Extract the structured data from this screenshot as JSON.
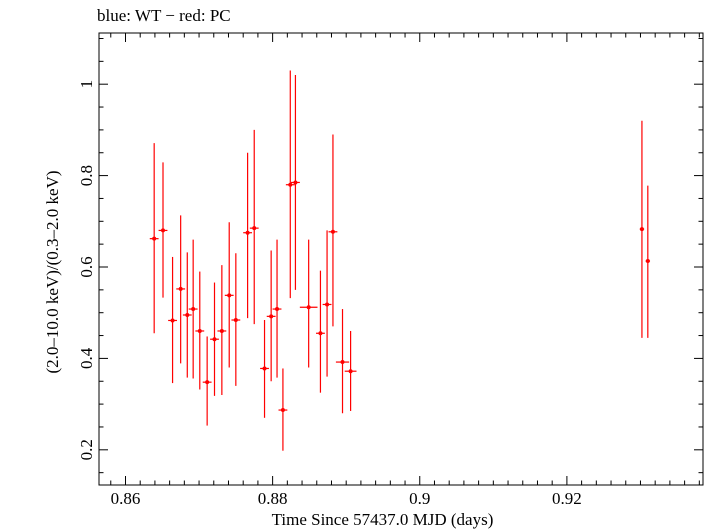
{
  "chart_data": {
    "type": "scatter",
    "title": "blue: WT − red: PC",
    "xlabel": "Time Since 57437.0 MJD (days)",
    "ylabel": "(2.0–10.0 keV)/(0.3–2.0 keV)",
    "xlim": [
      0.8564,
      0.9385
    ],
    "ylim": [
      0.123,
      1.112
    ],
    "x_ticks": [
      0.86,
      0.88,
      0.9,
      0.92
    ],
    "x_tick_labels": [
      "0.86",
      "0.88",
      "0.9",
      "0.92"
    ],
    "y_ticks": [
      0.2,
      0.4,
      0.6,
      0.8,
      1.0
    ],
    "y_tick_labels": [
      "0.2",
      "0.4",
      "0.6",
      "0.8",
      "1"
    ],
    "grid": false,
    "series": [
      {
        "name": "PC",
        "color": "#ff0000",
        "points": [
          {
            "x": 0.8639,
            "xerr": 0.0006,
            "y": 0.662,
            "ylo": 0.455,
            "yhi": 0.871
          },
          {
            "x": 0.8651,
            "xerr": 0.0006,
            "y": 0.68,
            "ylo": 0.533,
            "yhi": 0.829
          },
          {
            "x": 0.8664,
            "xerr": 0.0006,
            "y": 0.483,
            "ylo": 0.346,
            "yhi": 0.622
          },
          {
            "x": 0.8675,
            "xerr": 0.0006,
            "y": 0.552,
            "ylo": 0.389,
            "yhi": 0.713
          },
          {
            "x": 0.8684,
            "xerr": 0.0006,
            "y": 0.495,
            "ylo": 0.358,
            "yhi": 0.632
          },
          {
            "x": 0.8692,
            "xerr": 0.0006,
            "y": 0.508,
            "ylo": 0.356,
            "yhi": 0.66
          },
          {
            "x": 0.8701,
            "xerr": 0.0006,
            "y": 0.46,
            "ylo": 0.332,
            "yhi": 0.59
          },
          {
            "x": 0.8711,
            "xerr": 0.0006,
            "y": 0.348,
            "ylo": 0.253,
            "yhi": 0.448
          },
          {
            "x": 0.8721,
            "xerr": 0.0006,
            "y": 0.442,
            "ylo": 0.318,
            "yhi": 0.566
          },
          {
            "x": 0.8731,
            "xerr": 0.0006,
            "y": 0.46,
            "ylo": 0.32,
            "yhi": 0.604
          },
          {
            "x": 0.8741,
            "xerr": 0.0006,
            "y": 0.538,
            "ylo": 0.38,
            "yhi": 0.698
          },
          {
            "x": 0.875,
            "xerr": 0.0006,
            "y": 0.484,
            "ylo": 0.34,
            "yhi": 0.63
          },
          {
            "x": 0.8766,
            "xerr": 0.0006,
            "y": 0.675,
            "ylo": 0.488,
            "yhi": 0.85
          },
          {
            "x": 0.8775,
            "xerr": 0.0006,
            "y": 0.685,
            "ylo": 0.475,
            "yhi": 0.9
          },
          {
            "x": 0.8789,
            "xerr": 0.0006,
            "y": 0.378,
            "ylo": 0.27,
            "yhi": 0.484
          },
          {
            "x": 0.8798,
            "xerr": 0.0006,
            "y": 0.492,
            "ylo": 0.35,
            "yhi": 0.636
          },
          {
            "x": 0.8806,
            "xerr": 0.0006,
            "y": 0.508,
            "ylo": 0.358,
            "yhi": 0.66
          },
          {
            "x": 0.8814,
            "xerr": 0.0006,
            "y": 0.287,
            "ylo": 0.198,
            "yhi": 0.378
          },
          {
            "x": 0.8824,
            "xerr": 0.0006,
            "y": 0.78,
            "ylo": 0.532,
            "yhi": 1.03
          },
          {
            "x": 0.8831,
            "xerr": 0.0006,
            "y": 0.785,
            "ylo": 0.55,
            "yhi": 1.02
          },
          {
            "x": 0.8849,
            "xerr": 0.0012,
            "y": 0.512,
            "ylo": 0.38,
            "yhi": 0.66
          },
          {
            "x": 0.8865,
            "xerr": 0.0006,
            "y": 0.455,
            "ylo": 0.325,
            "yhi": 0.592
          },
          {
            "x": 0.8874,
            "xerr": 0.0006,
            "y": 0.518,
            "ylo": 0.36,
            "yhi": 0.68
          },
          {
            "x": 0.8882,
            "xerr": 0.0006,
            "y": 0.677,
            "ylo": 0.47,
            "yhi": 0.89
          },
          {
            "x": 0.8895,
            "xerr": 0.0009,
            "y": 0.392,
            "ylo": 0.28,
            "yhi": 0.508
          },
          {
            "x": 0.8906,
            "xerr": 0.0008,
            "y": 0.372,
            "ylo": 0.285,
            "yhi": 0.46
          },
          {
            "x": 0.9302,
            "xerr": 0.0003,
            "y": 0.683,
            "ylo": 0.445,
            "yhi": 0.92
          },
          {
            "x": 0.931,
            "xerr": 0.0003,
            "y": 0.613,
            "ylo": 0.445,
            "yhi": 0.778
          }
        ]
      }
    ]
  }
}
